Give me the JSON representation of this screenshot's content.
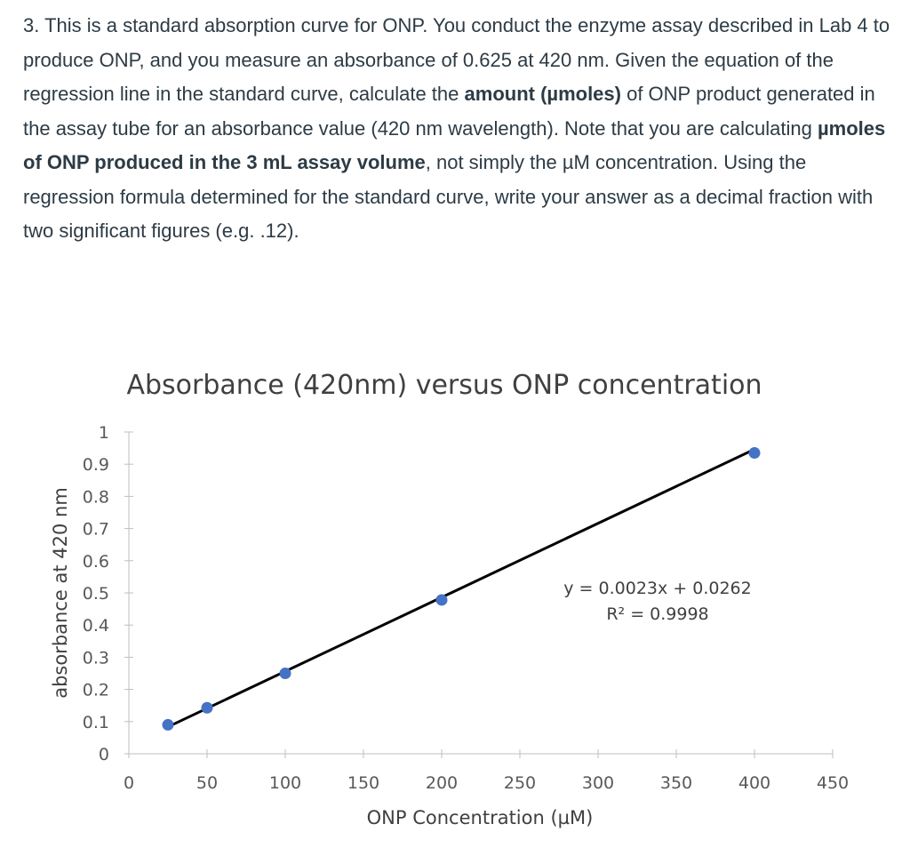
{
  "question": {
    "number": "3.",
    "t1": " This is a standard absorption curve for ONP.  You conduct the enzyme assay described in Lab 4 to produce ONP, and you measure an absorbance of 0.625 at 420 nm. Given the equation of the regression line in the standard curve, calculate the ",
    "b1": "amount (µmoles)",
    "t2": " of ONP product generated in the assay tube for an absorbance value (420 nm wavelength). Note that you are calculating ",
    "b2": "µmoles of ONP produced in the 3 mL assay volume",
    "t3": ", not simply the µM concentration. Using the regression formula determined for the standard curve, write your answer as a decimal fraction with two significant figures (e.g. .12)."
  },
  "chart_data": {
    "type": "scatter",
    "title": "Absorbance (420nm) versus ONP concentration",
    "xlabel": "ONP Concentration (µM)",
    "ylabel": "absorbance at 420 nm",
    "xlim": [
      0,
      450
    ],
    "ylim": [
      0,
      1
    ],
    "x_ticks": [
      "0",
      "50",
      "100",
      "150",
      "200",
      "250",
      "300",
      "350",
      "400",
      "450"
    ],
    "y_ticks": [
      "0",
      "0.1",
      "0.2",
      "0.3",
      "0.4",
      "0.5",
      "0.6",
      "0.7",
      "0.8",
      "0.9",
      "1"
    ],
    "points": [
      {
        "x": 25,
        "y": 0.09
      },
      {
        "x": 50,
        "y": 0.143
      },
      {
        "x": 100,
        "y": 0.25
      },
      {
        "x": 200,
        "y": 0.478
      },
      {
        "x": 400,
        "y": 0.935
      }
    ],
    "trendline": {
      "slope": 0.0023,
      "intercept": 0.0262,
      "x_range": [
        25,
        400
      ]
    },
    "equation": "y = 0.0023x + 0.0262",
    "r_squared": "R² = 0.9998",
    "marker_color": "#4472c4",
    "line_color": "#000000",
    "grid": false
  }
}
